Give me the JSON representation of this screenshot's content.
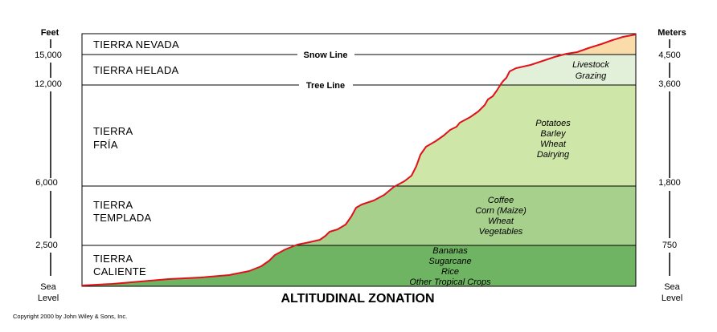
{
  "title": "ALTITUDINAL ZONATION",
  "copyright": "Copyright 2000 by John Wiley & Sons, Inc.",
  "left_axis": {
    "header": "Feet",
    "ticks": [
      "Sea",
      "Level",
      "2,500",
      "6,000",
      "12,000",
      "15,000"
    ]
  },
  "right_axis": {
    "header": "Meters",
    "ticks": [
      "Sea",
      "Level",
      "750",
      "1,800",
      "3,600",
      "4,500"
    ]
  },
  "boundaries": {
    "snow_line": "Snow Line",
    "tree_line": "Tree Line"
  },
  "zones": [
    {
      "lines": [
        "TIERRA NEVADA"
      ]
    },
    {
      "lines": [
        "TIERRA HELADA"
      ]
    },
    {
      "lines": [
        "TIERRA",
        "FRÍA"
      ]
    },
    {
      "lines": [
        "TIERRA",
        "TEMPLADA"
      ]
    },
    {
      "lines": [
        "TIERRA",
        "CALIENTE"
      ]
    }
  ],
  "land_uses": {
    "helada": [
      "Livestock",
      "Grazing"
    ],
    "fria": [
      "Potatoes",
      "Barley",
      "Wheat",
      "Dairying"
    ],
    "templada": [
      "Coffee",
      "Corn (Maize)",
      "Wheat",
      "Vegetables"
    ],
    "caliente": [
      "Bananas",
      "Sugarcane",
      "Rice",
      "Other Tropical Crops"
    ]
  },
  "colors": {
    "nevada_fill": "#f9dcaa",
    "helada_fill": "#e2efd9",
    "fria_fill": "#cfe6a9",
    "templada_fill": "#a6d08c",
    "caliente_fill": "#6fb462",
    "profile_line": "#e0131b",
    "frame": "#000000"
  }
}
